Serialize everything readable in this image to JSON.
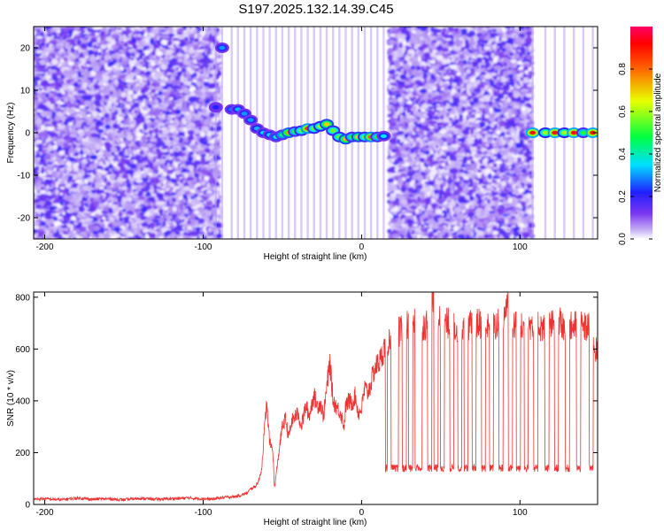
{
  "title": "S197.2025.132.14.39.C45",
  "chart_data": [
    {
      "type": "heatmap",
      "xlabel": "Height of straight line (km)",
      "ylabel": "Frequency (Hz)",
      "xlim": [
        -207,
        149
      ],
      "ylim": [
        -25,
        25
      ],
      "xticks": [
        -200,
        -100,
        0,
        100
      ],
      "yticks": [
        -20,
        -10,
        0,
        10,
        20
      ],
      "colorbar": {
        "label": "Normalized spectral amplitude",
        "ticks": [
          "0.0",
          "0.2",
          "0.4",
          "0.6",
          "0.8"
        ],
        "range": [
          0,
          1
        ]
      },
      "noise_regions": [
        {
          "x": [
            -207,
            -90
          ],
          "level": 0.18
        },
        {
          "x": [
            18,
            107
          ],
          "level": 0.18
        }
      ],
      "ridge": [
        {
          "x": -92,
          "y": 6,
          "amp": 0.22
        },
        {
          "x": -88,
          "y": 20,
          "amp": 0.3
        },
        {
          "x": -82,
          "y": 5.5,
          "amp": 0.28
        },
        {
          "x": -78,
          "y": 5.5,
          "amp": 0.32
        },
        {
          "x": -74,
          "y": 4.5,
          "amp": 0.3
        },
        {
          "x": -70,
          "y": 3,
          "amp": 0.3
        },
        {
          "x": -66,
          "y": 1,
          "amp": 0.32
        },
        {
          "x": -62,
          "y": 0,
          "amp": 0.35
        },
        {
          "x": -58,
          "y": -0.5,
          "amp": 0.35
        },
        {
          "x": -54,
          "y": -1,
          "amp": 0.38
        },
        {
          "x": -50,
          "y": -0.5,
          "amp": 0.45
        },
        {
          "x": -46,
          "y": 0,
          "amp": 0.75
        },
        {
          "x": -42,
          "y": 0.3,
          "amp": 0.5
        },
        {
          "x": -38,
          "y": 0.5,
          "amp": 0.55
        },
        {
          "x": -34,
          "y": 1,
          "amp": 0.85
        },
        {
          "x": -30,
          "y": 1,
          "amp": 0.55
        },
        {
          "x": -26,
          "y": 1.5,
          "amp": 0.6
        },
        {
          "x": -22,
          "y": 2,
          "amp": 0.7
        },
        {
          "x": -18,
          "y": 0.5,
          "amp": 0.55
        },
        {
          "x": -14,
          "y": -1,
          "amp": 0.55
        },
        {
          "x": -10,
          "y": -1.5,
          "amp": 0.72
        },
        {
          "x": -6,
          "y": -1,
          "amp": 0.5
        },
        {
          "x": -2,
          "y": -1,
          "amp": 0.7
        },
        {
          "x": 2,
          "y": -1,
          "amp": 0.55
        },
        {
          "x": 6,
          "y": -1,
          "amp": 0.82
        },
        {
          "x": 10,
          "y": -1,
          "amp": 0.5
        },
        {
          "x": 14,
          "y": -0.8,
          "amp": 0.35
        },
        {
          "x": 108,
          "y": 0,
          "amp": 0.9
        },
        {
          "x": 116,
          "y": 0,
          "amp": 0.6
        },
        {
          "x": 122,
          "y": 0,
          "amp": 0.9
        },
        {
          "x": 128,
          "y": 0,
          "amp": 0.6
        },
        {
          "x": 134,
          "y": 0,
          "amp": 0.9
        },
        {
          "x": 140,
          "y": 0,
          "amp": 0.5
        },
        {
          "x": 146,
          "y": 0,
          "amp": 0.9
        }
      ]
    },
    {
      "type": "line",
      "xlabel": "Height of straight line (km)",
      "ylabel": "SNR (10 * v/v)",
      "xlim": [
        -207,
        149
      ],
      "ylim": [
        0,
        820
      ],
      "xticks": [
        -200,
        -100,
        0,
        100
      ],
      "yticks": [
        0,
        200,
        400,
        600,
        800
      ],
      "color": "#ee3333",
      "series": [
        {
          "x": [
            -207,
            -200,
            -190,
            -180,
            -170,
            -160,
            -150,
            -140,
            -130,
            -120,
            -110,
            -100,
            -95,
            -90,
            -85,
            -80,
            -75,
            -72,
            -70,
            -67,
            -65,
            -63,
            -62,
            -60,
            -58,
            -56,
            -55,
            -53,
            -51,
            -50,
            -48,
            -46,
            -44,
            -42,
            -40,
            -38,
            -36,
            -35,
            -33,
            -31,
            -30,
            -28,
            -26,
            -24,
            -22,
            -20,
            -18,
            -16,
            -15,
            -13,
            -11,
            -10,
            -8,
            -6,
            -4,
            -2,
            0,
            2,
            4,
            6,
            8,
            10,
            12,
            14,
            16,
            18,
            20,
            22,
            25,
            28,
            30,
            35,
            40,
            42,
            45,
            50,
            55,
            60,
            65,
            70,
            75,
            80,
            85,
            90,
            92,
            95,
            100,
            105,
            110,
            115,
            120,
            125,
            130,
            135,
            140,
            145,
            147,
            149
          ],
          "y": [
            20,
            22,
            18,
            25,
            20,
            22,
            18,
            24,
            20,
            22,
            25,
            22,
            20,
            25,
            28,
            30,
            38,
            45,
            60,
            70,
            90,
            140,
            230,
            390,
            240,
            210,
            60,
            160,
            260,
            300,
            330,
            260,
            320,
            340,
            350,
            300,
            360,
            380,
            340,
            400,
            420,
            380,
            390,
            340,
            450,
            550,
            400,
            380,
            370,
            350,
            300,
            380,
            400,
            390,
            420,
            350,
            370,
            450,
            430,
            470,
            520,
            540,
            560,
            600,
            620,
            640,
            650,
            660,
            670,
            680,
            700,
            710,
            690,
            700,
            820,
            690,
            700,
            680,
            700,
            690,
            700,
            680,
            690,
            710,
            800,
            700,
            680,
            690,
            700,
            680,
            690,
            700,
            680,
            690,
            680,
            690,
            610,
            580
          ]
        }
      ],
      "dropouts_x": [
        8,
        15,
        20,
        22,
        27,
        31,
        35,
        37,
        43,
        47,
        51,
        57,
        62,
        66,
        71,
        77,
        82,
        88,
        94,
        99,
        104,
        110,
        117,
        123,
        130,
        137,
        145
      ],
      "dropout_level": 140
    }
  ]
}
